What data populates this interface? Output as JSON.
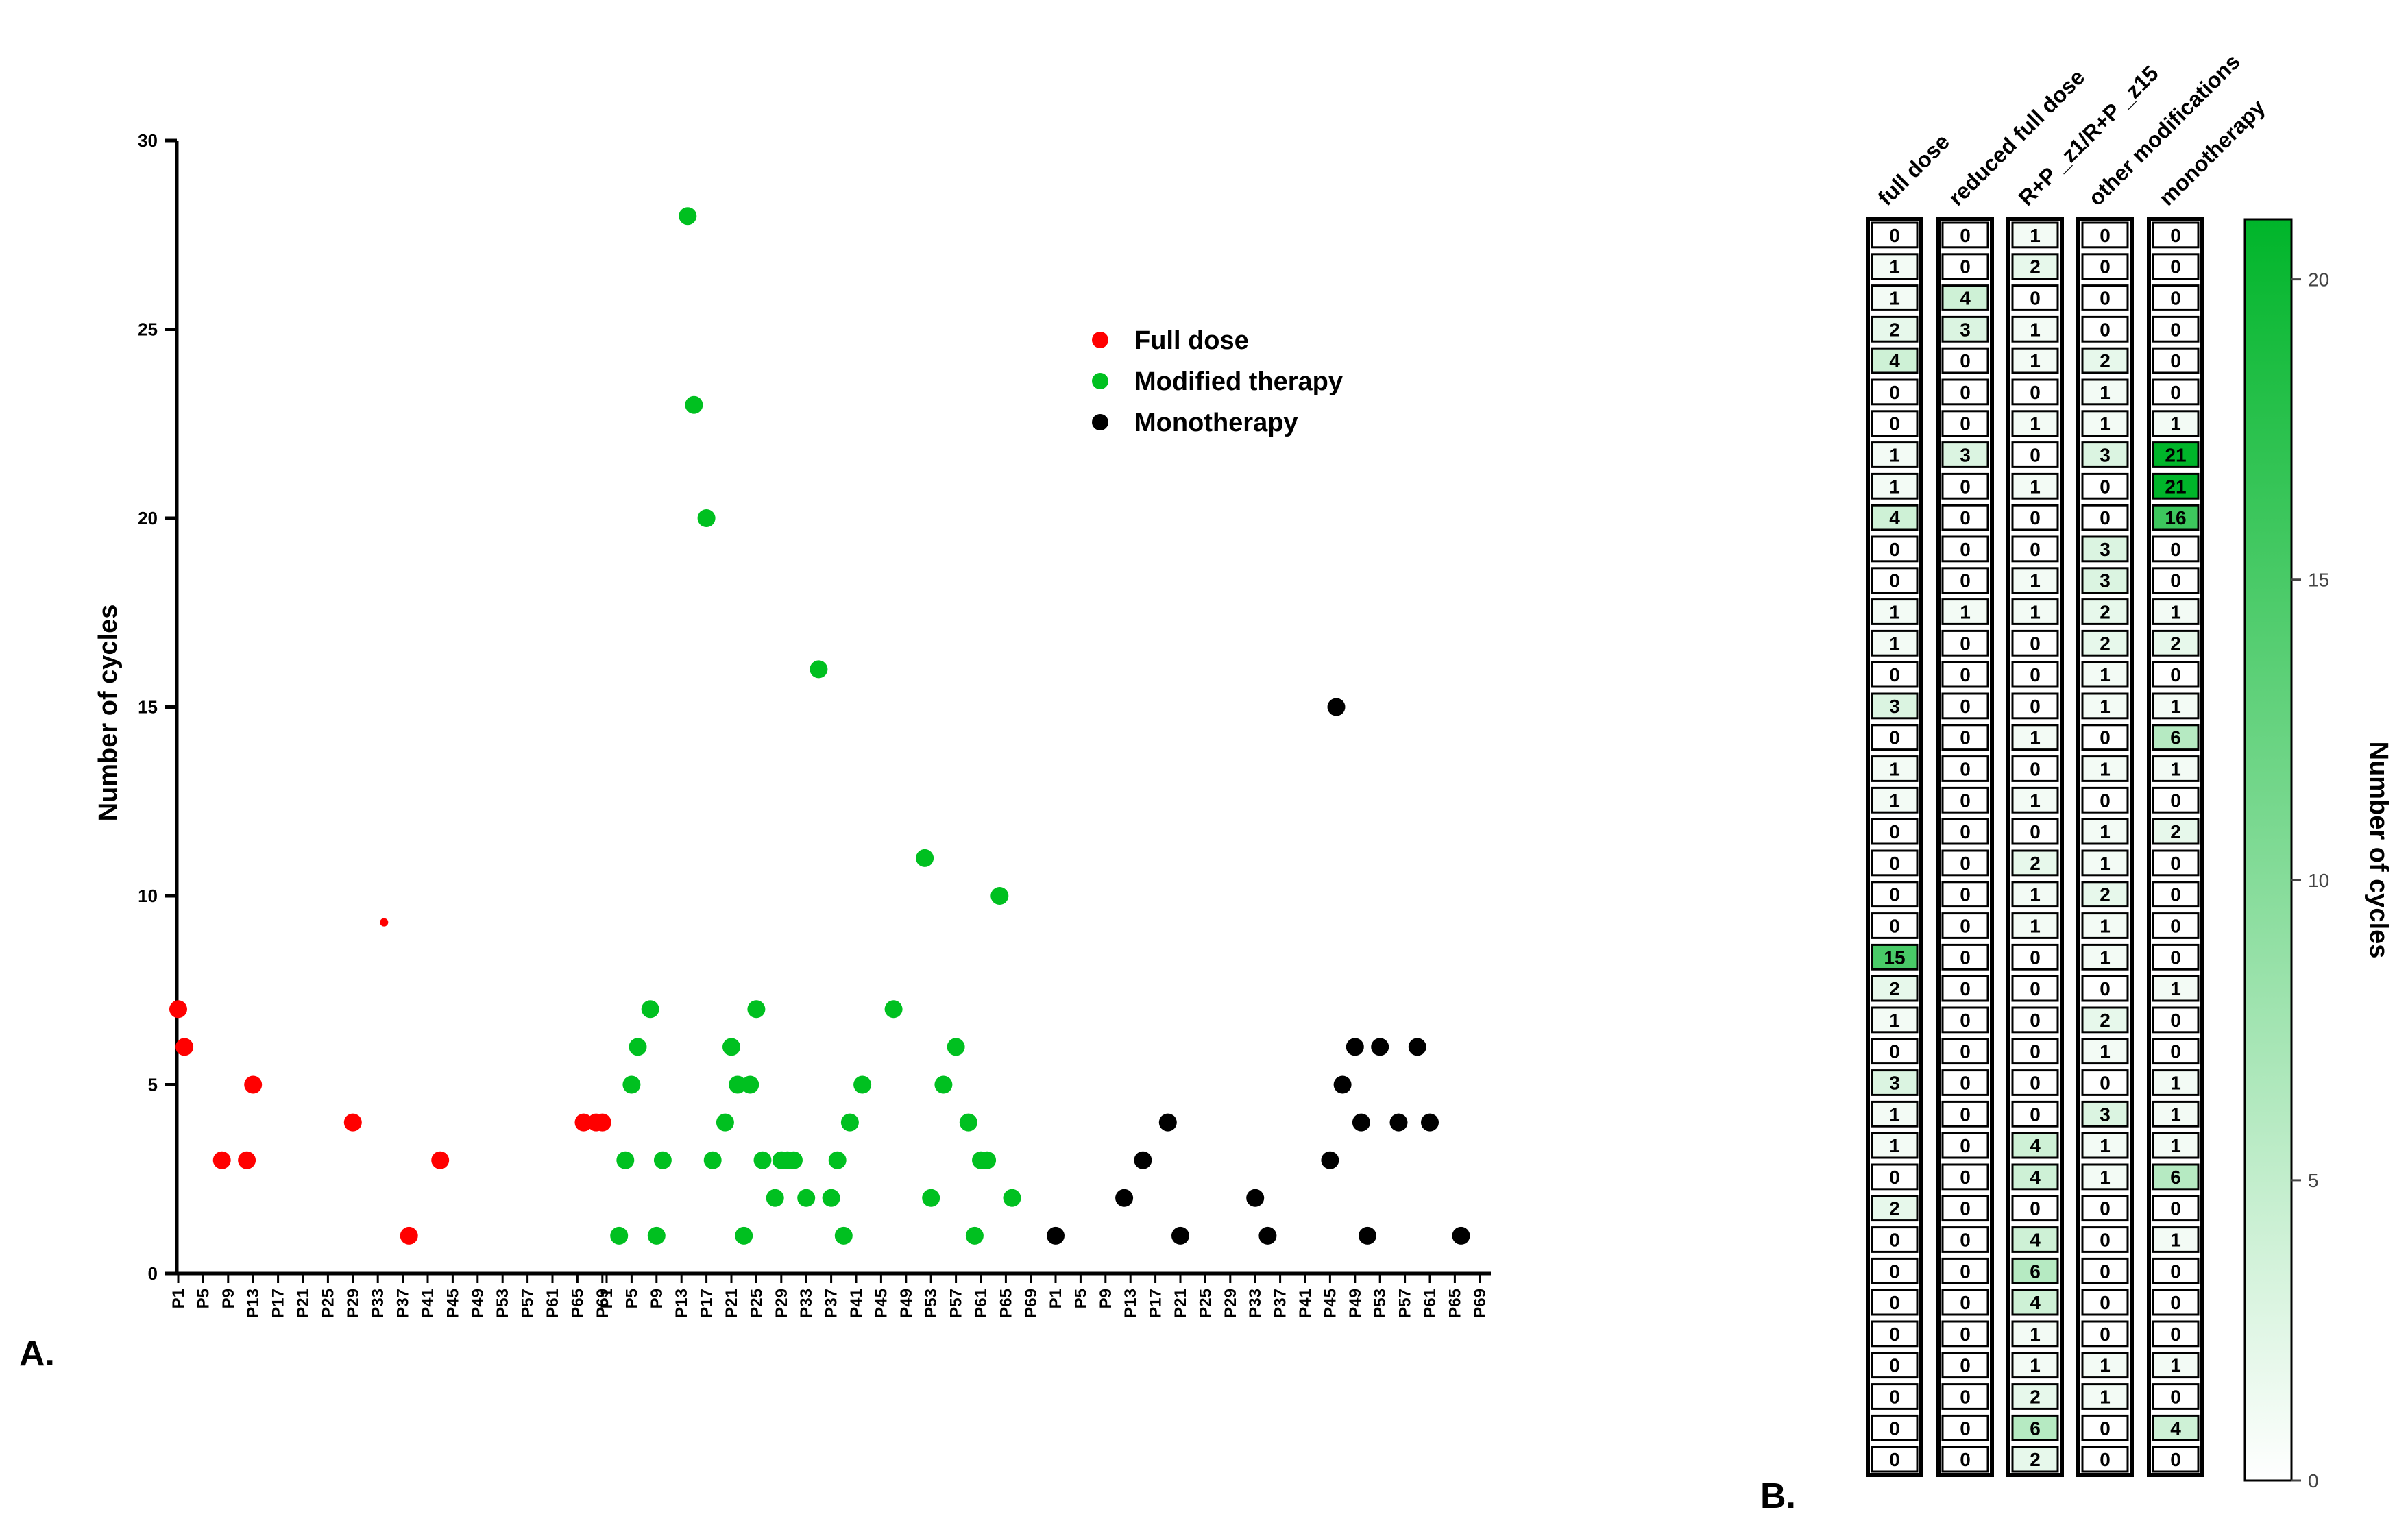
{
  "colors": {
    "full_dose": "#ff0000",
    "modified": "#00c020",
    "monotherapy": "#000000",
    "heat_low": "#ffffff",
    "heat_high": "#00b52a"
  },
  "chart_data": [
    {
      "type": "scatter",
      "panel_label": "A.",
      "ylabel": "Number of  cycles",
      "ylim": [
        0,
        30
      ],
      "yticks": [
        0,
        5,
        10,
        15,
        20,
        25,
        30
      ],
      "xtick_groups": [
        [
          "P1",
          "P5",
          "P9",
          "P13",
          "P17",
          "P21",
          "P25",
          "P29",
          "P33",
          "P37",
          "P41",
          "P45",
          "P49",
          "P53",
          "P57",
          "P61",
          "P65",
          "P69"
        ],
        [
          "P1",
          "P5",
          "P9",
          "P13",
          "P17",
          "P21",
          "P25",
          "P29",
          "P33",
          "P37",
          "P41",
          "P45",
          "P49",
          "P53",
          "P57",
          "P61",
          "P65",
          "P69"
        ],
        [
          "P1",
          "P5",
          "P9",
          "P13",
          "P17",
          "P21",
          "P25",
          "P29",
          "P33",
          "P37",
          "P41",
          "P45",
          "P49",
          "P53",
          "P57",
          "P61",
          "P65",
          "P69"
        ]
      ],
      "legend_position": "top-right",
      "series": [
        {
          "name": "Full dose",
          "color_key": "full_dose",
          "points": [
            {
              "x": 1,
              "y": 7
            },
            {
              "x": 2,
              "y": 6
            },
            {
              "x": 8,
              "y": 3
            },
            {
              "x": 12,
              "y": 3
            },
            {
              "x": 13,
              "y": 5
            },
            {
              "x": 29,
              "y": 4
            },
            {
              "x": 38,
              "y": 1
            },
            {
              "x": 43,
              "y": 3
            },
            {
              "x": 66,
              "y": 4
            },
            {
              "x": 68,
              "y": 4
            },
            {
              "x": 69,
              "y": 4
            },
            {
              "x": 34,
              "y": 9.3,
              "size": "small"
            }
          ]
        },
        {
          "name": "Modified therapy",
          "color_key": "modified",
          "points": [
            {
              "x": 3,
              "y": 1
            },
            {
              "x": 4,
              "y": 3
            },
            {
              "x": 5,
              "y": 5
            },
            {
              "x": 6,
              "y": 6
            },
            {
              "x": 8,
              "y": 7
            },
            {
              "x": 9,
              "y": 1
            },
            {
              "x": 10,
              "y": 3
            },
            {
              "x": 14,
              "y": 28
            },
            {
              "x": 15,
              "y": 23
            },
            {
              "x": 17,
              "y": 20
            },
            {
              "x": 18,
              "y": 3
            },
            {
              "x": 20,
              "y": 4
            },
            {
              "x": 21,
              "y": 6
            },
            {
              "x": 22,
              "y": 5
            },
            {
              "x": 23,
              "y": 1
            },
            {
              "x": 24,
              "y": 5
            },
            {
              "x": 25,
              "y": 7
            },
            {
              "x": 26,
              "y": 3
            },
            {
              "x": 28,
              "y": 2
            },
            {
              "x": 29,
              "y": 3
            },
            {
              "x": 30,
              "y": 3
            },
            {
              "x": 31,
              "y": 3
            },
            {
              "x": 33,
              "y": 2
            },
            {
              "x": 35,
              "y": 16
            },
            {
              "x": 37,
              "y": 2
            },
            {
              "x": 38,
              "y": 3
            },
            {
              "x": 39,
              "y": 1
            },
            {
              "x": 40,
              "y": 4
            },
            {
              "x": 42,
              "y": 5
            },
            {
              "x": 47,
              "y": 7
            },
            {
              "x": 52,
              "y": 11
            },
            {
              "x": 53,
              "y": 2
            },
            {
              "x": 55,
              "y": 5
            },
            {
              "x": 57,
              "y": 6
            },
            {
              "x": 59,
              "y": 4
            },
            {
              "x": 60,
              "y": 1
            },
            {
              "x": 61,
              "y": 3
            },
            {
              "x": 62,
              "y": 3
            },
            {
              "x": 64,
              "y": 10
            },
            {
              "x": 66,
              "y": 2
            }
          ]
        },
        {
          "name": "Monotherapy",
          "color_key": "monotherapy",
          "points": [
            {
              "x": 1,
              "y": 1
            },
            {
              "x": 12,
              "y": 2
            },
            {
              "x": 15,
              "y": 3
            },
            {
              "x": 19,
              "y": 4
            },
            {
              "x": 21,
              "y": 1
            },
            {
              "x": 33,
              "y": 2
            },
            {
              "x": 35,
              "y": 1
            },
            {
              "x": 45,
              "y": 3
            },
            {
              "x": 46,
              "y": 15
            },
            {
              "x": 47,
              "y": 5
            },
            {
              "x": 49,
              "y": 6
            },
            {
              "x": 50,
              "y": 4
            },
            {
              "x": 51,
              "y": 1
            },
            {
              "x": 53,
              "y": 6
            },
            {
              "x": 56,
              "y": 4
            },
            {
              "x": 59,
              "y": 6
            },
            {
              "x": 61,
              "y": 4
            },
            {
              "x": 66,
              "y": 1
            }
          ]
        }
      ]
    },
    {
      "type": "heatmap",
      "panel_label": "B.",
      "columns": [
        "full dose",
        "reduced full dose",
        "R+P _z1/R+P _z15",
        "other modifications",
        "monotherapy"
      ],
      "values": [
        [
          0,
          0,
          1,
          0,
          0
        ],
        [
          1,
          0,
          2,
          0,
          0
        ],
        [
          1,
          4,
          0,
          0,
          0
        ],
        [
          2,
          3,
          1,
          0,
          0
        ],
        [
          4,
          0,
          1,
          2,
          0
        ],
        [
          0,
          0,
          0,
          1,
          0
        ],
        [
          0,
          0,
          1,
          1,
          1
        ],
        [
          1,
          3,
          0,
          3,
          21
        ],
        [
          1,
          0,
          1,
          0,
          21
        ],
        [
          4,
          0,
          0,
          0,
          16
        ],
        [
          0,
          0,
          0,
          3,
          0
        ],
        [
          0,
          0,
          1,
          3,
          0
        ],
        [
          1,
          1,
          1,
          2,
          1
        ],
        [
          1,
          0,
          0,
          2,
          2
        ],
        [
          0,
          0,
          0,
          1,
          0
        ],
        [
          3,
          0,
          0,
          1,
          1
        ],
        [
          0,
          0,
          1,
          0,
          6
        ],
        [
          1,
          0,
          0,
          1,
          1
        ],
        [
          1,
          0,
          1,
          0,
          0
        ],
        [
          0,
          0,
          0,
          1,
          2
        ],
        [
          0,
          0,
          2,
          1,
          0
        ],
        [
          0,
          0,
          1,
          2,
          0
        ],
        [
          0,
          0,
          1,
          1,
          0
        ],
        [
          15,
          0,
          0,
          1,
          0
        ],
        [
          2,
          0,
          0,
          0,
          1
        ],
        [
          1,
          0,
          0,
          2,
          0
        ],
        [
          0,
          0,
          0,
          1,
          0
        ],
        [
          3,
          0,
          0,
          0,
          1
        ],
        [
          1,
          0,
          0,
          3,
          1
        ],
        [
          1,
          0,
          4,
          1,
          1
        ],
        [
          0,
          0,
          4,
          1,
          6
        ],
        [
          2,
          0,
          0,
          0,
          0
        ],
        [
          0,
          0,
          4,
          0,
          1
        ],
        [
          0,
          0,
          6,
          0,
          0
        ],
        [
          0,
          0,
          4,
          0,
          0
        ],
        [
          0,
          0,
          1,
          0,
          0
        ],
        [
          0,
          0,
          1,
          1,
          1
        ],
        [
          0,
          0,
          2,
          1,
          0
        ],
        [
          0,
          0,
          6,
          0,
          4
        ],
        [
          0,
          0,
          2,
          0,
          0
        ]
      ],
      "colorbar": {
        "label": "Number of cycles",
        "range": [
          0,
          21
        ],
        "ticks": [
          0,
          5,
          10,
          15,
          20
        ]
      }
    }
  ]
}
